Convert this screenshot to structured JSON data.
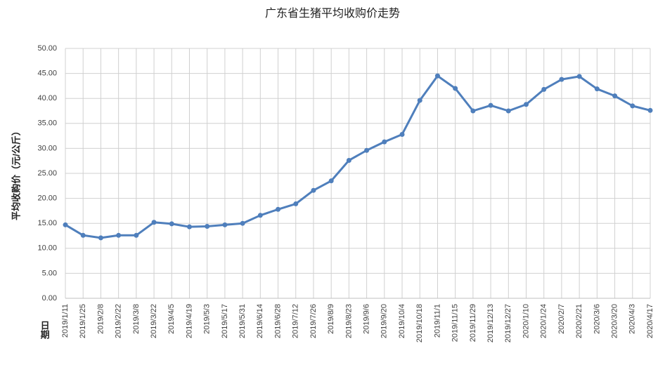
{
  "chart_data": {
    "type": "line",
    "title": "广东省生猪平均收购价走势",
    "y_label": "平均收购价（元/公斤）",
    "x_label": "日期",
    "categories": [
      "2019/1/11",
      "2019/1/25",
      "2019/2/8",
      "2019/2/22",
      "2019/3/8",
      "2019/3/22",
      "2019/4/5",
      "2019/4/19",
      "2019/5/3",
      "2019/5/17",
      "2019/5/31",
      "2019/6/14",
      "2019/6/28",
      "2019/7/12",
      "2019/7/26",
      "2019/8/9",
      "2019/8/23",
      "2019/9/6",
      "2019/9/20",
      "2019/10/4",
      "2019/10/18",
      "2019/11/1",
      "2019/11/15",
      "2019/11/29",
      "2019/12/13",
      "2019/12/27",
      "2020/1/10",
      "2020/1/24",
      "2020/2/7",
      "2020/2/21",
      "2020/3/6",
      "2020/3/20",
      "2020/4/3",
      "2020/4/17"
    ],
    "values": [
      14.7,
      12.6,
      12.1,
      12.6,
      12.6,
      15.2,
      14.9,
      14.3,
      14.4,
      14.7,
      15.0,
      16.6,
      17.8,
      18.9,
      21.6,
      23.5,
      27.6,
      29.6,
      31.3,
      32.8,
      39.6,
      44.5,
      42.0,
      37.5,
      38.6,
      37.5,
      38.8,
      41.8,
      43.8,
      44.4,
      41.9,
      40.5,
      38.5,
      37.6
    ],
    "color": "#4f7fbc",
    "ylim": [
      0,
      50
    ],
    "yticks": [
      {
        "value": 0,
        "label": "0.00"
      },
      {
        "value": 5,
        "label": "5.00"
      },
      {
        "value": 10,
        "label": "10.00"
      },
      {
        "value": 15,
        "label": "15.00"
      },
      {
        "value": 20,
        "label": "20.00"
      },
      {
        "value": 25,
        "label": "25.00"
      },
      {
        "value": 30,
        "label": "30.00"
      },
      {
        "value": 35,
        "label": "35.00"
      },
      {
        "value": 40,
        "label": "40.00"
      },
      {
        "value": 45,
        "label": "45.00"
      },
      {
        "value": 50,
        "label": "50.00"
      }
    ],
    "grid": true
  }
}
